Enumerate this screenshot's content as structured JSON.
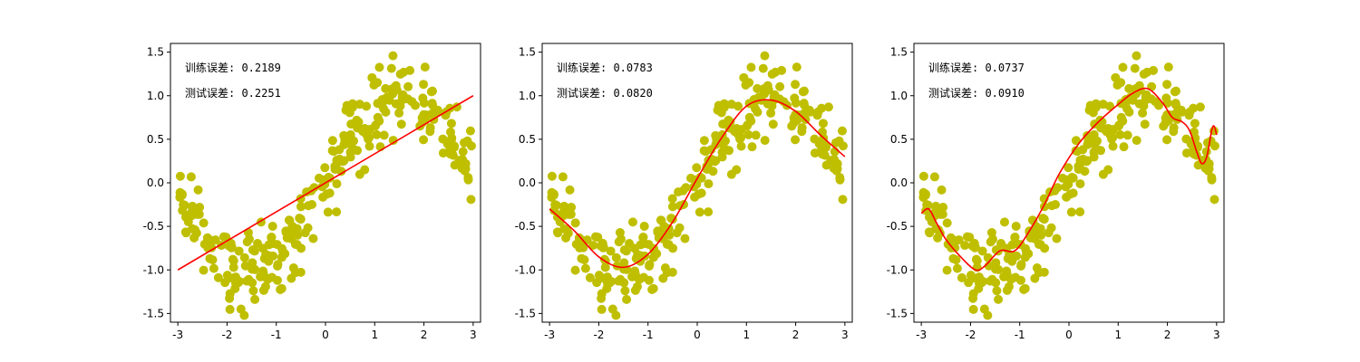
{
  "chart_data": [
    {
      "type": "scatter",
      "xlim": [
        -3.15,
        3.15
      ],
      "ylim": [
        -1.6,
        1.6
      ],
      "xticks": [
        "-3",
        "-2",
        "-1",
        "0",
        "1",
        "2",
        "3"
      ],
      "yticks": [
        "1.5",
        "1.0",
        "0.5",
        "0.0",
        "-0.5",
        "-1.0",
        "-1.5"
      ],
      "annotations": [
        "训练误差: 0.2189",
        "测试误差: 0.2251"
      ],
      "point_color": "#bfbf00",
      "line_color": "#ff0000",
      "fit": {
        "x": [
          -3.0,
          3.0
        ],
        "y": [
          -1.0,
          1.0
        ]
      }
    },
    {
      "type": "scatter",
      "xlim": [
        -3.15,
        3.15
      ],
      "ylim": [
        -1.6,
        1.6
      ],
      "xticks": [
        "-3",
        "-2",
        "-1",
        "0",
        "1",
        "2",
        "3"
      ],
      "yticks": [
        "1.5",
        "1.0",
        "0.5",
        "0.0",
        "-0.5",
        "-1.0",
        "-1.5"
      ],
      "annotations": [
        "训练误差: 0.0783",
        "测试误差: 0.0820"
      ],
      "point_color": "#bfbf00",
      "line_color": "#ff0000",
      "fit": {
        "x": [
          -3.0,
          -2.5,
          -2.0,
          -1.5,
          -1.0,
          -0.5,
          0.0,
          0.5,
          1.0,
          1.5,
          2.0,
          2.5,
          3.0
        ],
        "y": [
          -0.3,
          -0.55,
          -0.85,
          -0.97,
          -0.82,
          -0.45,
          0.05,
          0.52,
          0.88,
          0.95,
          0.82,
          0.55,
          0.3
        ]
      }
    },
    {
      "type": "scatter",
      "xlim": [
        -3.15,
        3.15
      ],
      "ylim": [
        -1.6,
        1.6
      ],
      "xticks": [
        "-3",
        "-2",
        "-1",
        "0",
        "1",
        "2",
        "3"
      ],
      "yticks": [
        "1.5",
        "1.0",
        "0.5",
        "0.0",
        "-0.5",
        "-1.0",
        "-1.5"
      ],
      "annotations": [
        "训练误差: 0.0737",
        "测试误差: 0.0910"
      ],
      "point_color": "#bfbf00",
      "line_color": "#ff0000",
      "fit": {
        "x": [
          -3.0,
          -2.85,
          -2.7,
          -2.5,
          -2.2,
          -1.9,
          -1.7,
          -1.4,
          -1.1,
          -0.8,
          -0.5,
          -0.2,
          0.2,
          0.6,
          1.0,
          1.3,
          1.6,
          1.9,
          2.1,
          2.3,
          2.45,
          2.6,
          2.7,
          2.8,
          2.9,
          2.95,
          3.0
        ],
        "y": [
          -0.35,
          -0.3,
          -0.45,
          -0.65,
          -0.85,
          -1.0,
          -0.95,
          -0.78,
          -0.78,
          -0.55,
          -0.25,
          0.1,
          0.45,
          0.7,
          0.9,
          1.03,
          1.08,
          0.92,
          0.75,
          0.7,
          0.6,
          0.35,
          0.22,
          0.3,
          0.6,
          0.65,
          0.55
        ]
      }
    }
  ]
}
